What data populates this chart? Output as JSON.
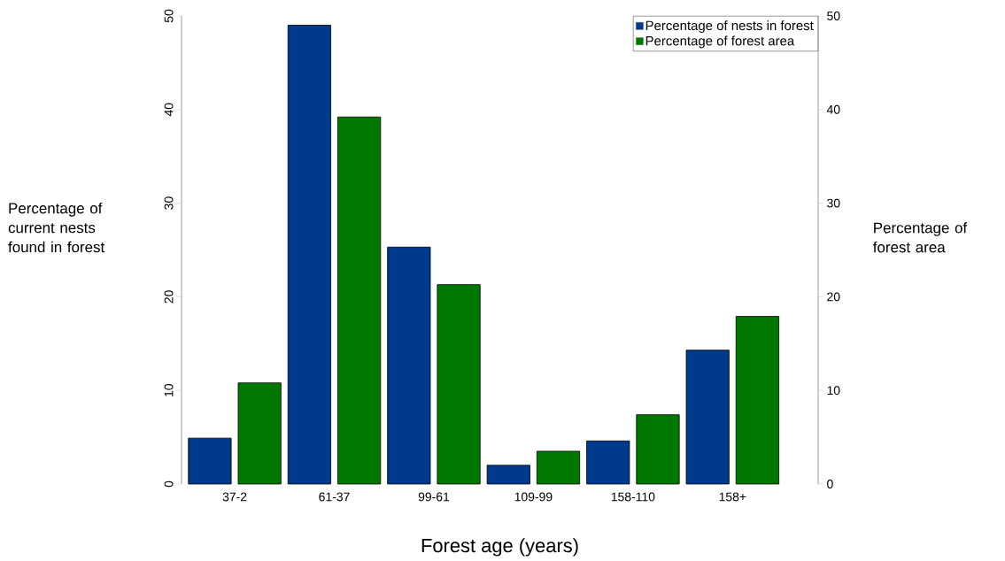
{
  "chart_data": {
    "type": "bar",
    "categories": [
      "37-2",
      "61-37",
      "99-61",
      "109-99",
      "158-110",
      "158+"
    ],
    "series": [
      {
        "name": "Percentage of nests in forest",
        "color": "#003a8c",
        "values": [
          4.9,
          49.0,
          25.3,
          2.0,
          4.6,
          14.3
        ]
      },
      {
        "name": "Percentage of forest area",
        "color": "#007800",
        "axis": "y2",
        "values": [
          10.8,
          39.2,
          21.3,
          3.5,
          7.4,
          17.9
        ]
      }
    ],
    "xlabel": "Forest age (years)",
    "ylabel": "Percentage of current nests found in forest",
    "y2label": "Percentage of forest area",
    "ylim": [
      0,
      50
    ],
    "yticks": [
      0,
      10,
      20,
      30,
      40,
      50
    ],
    "y2lim": [
      0,
      50
    ],
    "y2ticks": [
      0,
      10,
      20,
      30,
      40,
      50
    ],
    "legend": "top right"
  }
}
